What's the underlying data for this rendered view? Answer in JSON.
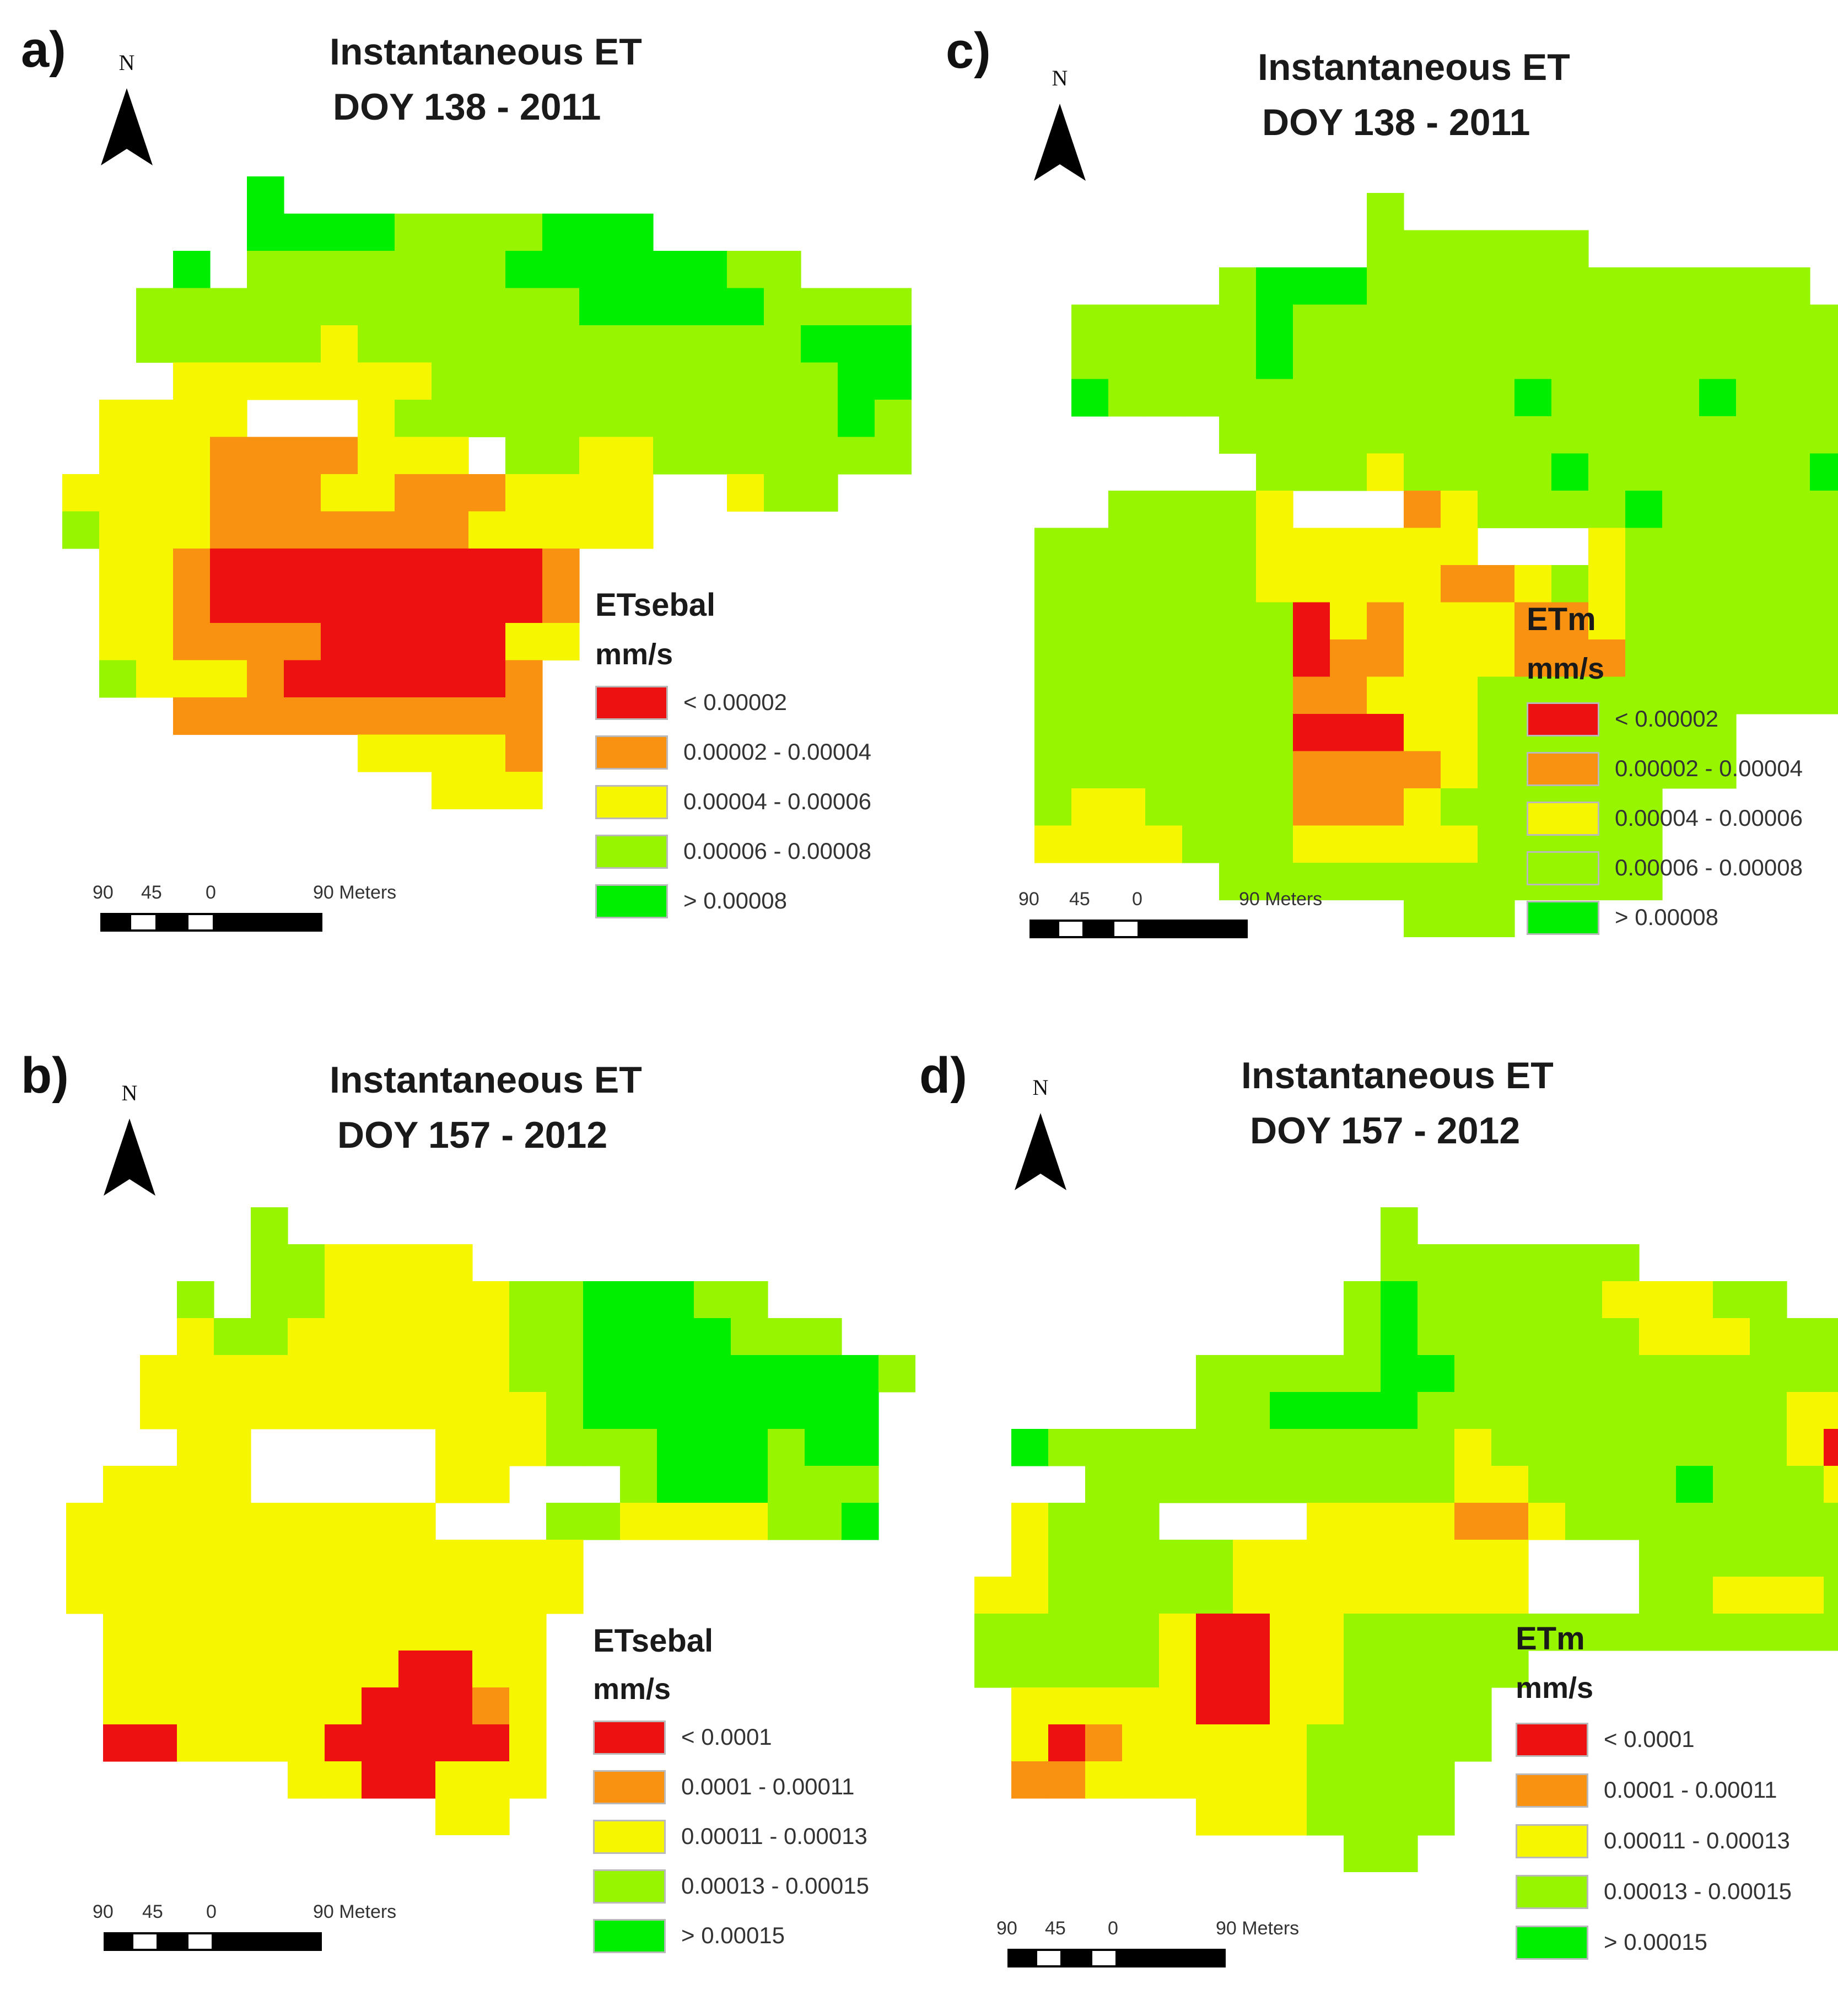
{
  "colors": {
    "red": "#ee1111",
    "orange": "#f99210",
    "yellow": "#f6f600",
    "lightgreen": "#98f500",
    "green": "#00ee00"
  },
  "panels": [
    {
      "letter": "a)",
      "title_line1": "Instantaneous ET",
      "title_line2": "DOY 138 - 2011",
      "north_label": "N",
      "legend": {
        "title": "ETsebal",
        "unit": "mm/s",
        "classes": [
          {
            "label": "< 0.00002",
            "color": "red"
          },
          {
            "label": "0.00002 - 0.00004",
            "color": "orange"
          },
          {
            "label": "0.00004 - 0.00006",
            "color": "yellow"
          },
          {
            "label": "0.00006 - 0.00008",
            "color": "lightgreen"
          },
          {
            "label": "> 0.00008",
            "color": "green"
          }
        ]
      },
      "scale": {
        "t1": "90",
        "t2": "45",
        "t3": "0",
        "t4": "90 Meters"
      },
      "grid": [
        ".....G.................",
        ".....GGGGLLLLGGG.......",
        "...G.LLLLLLLGGGGGGLL...",
        "..LLLLLLLLLLLLGGGGGLLLL",
        "..LLLLLYLLLLLLLLLLLLGGG",
        "...YYYYYYYLLLLLLLLLLLGG",
        ".YYYY...YLLLLLLLLLLLLGL",
        ".YYYOOOOYYY.LLYYLLLLLLL",
        "YYYYOOOYYOOOYYYY..YLL..",
        "LYYYOOOOOOOYYYYY.......",
        ".YYORRRRRRRRRO.........",
        ".YYORRRRRRRRRO.........",
        ".YYOOOORRRRRYY.........",
        ".LYYYORRRRRRO..........",
        "...OOOOOOOOOO..........",
        "........YYYYO..........",
        "..........YYY.........."
      ]
    },
    {
      "letter": "b)",
      "title_line1": "Instantaneous ET",
      "title_line2": "DOY 157 - 2012",
      "north_label": "N",
      "legend": {
        "title": "ETsebal",
        "unit": "mm/s",
        "classes": [
          {
            "label": "< 0.0001",
            "color": "red"
          },
          {
            "label": "0.0001 - 0.00011",
            "color": "orange"
          },
          {
            "label": "0.00011 - 0.00013",
            "color": "yellow"
          },
          {
            "label": "0.00013 - 0.00015",
            "color": "lightgreen"
          },
          {
            "label": "> 0.00015",
            "color": "green"
          }
        ]
      },
      "scale": {
        "t1": "90",
        "t2": "45",
        "t3": "0",
        "t4": "90 Meters"
      },
      "grid": [
        ".....L.................",
        ".....LLYYYY............",
        "...L.LLYYYYYLLGGGLL....",
        "...YLLYYYYYYLLGGGGLLL..",
        "..YYYYYYYYYYLLGGGGGGGGL",
        "..YYYYYYYYYYYLGGGGGGGG.",
        "...YY.....YYYLLLGGGLGG.",
        ".YYYY.....YY...LGGGLLL.",
        "YYYYYYYYYY...LLYYYYLLG.",
        "YYYYYYYYYYYYYY.........",
        "YYYYYYYYYYYYYY.........",
        ".YYYYYYYYYYYY..........",
        ".YYYYYYYYRRYY..........",
        ".YYYYYYYRRROY..........",
        ".RRYYYYRRRRRY..........",
        "......YYRRYYY..........",
        "..........YY..........."
      ]
    },
    {
      "letter": "c)",
      "title_line1": "Instantaneous ET",
      "title_line2": "DOY 138 - 2011",
      "north_label": "N",
      "legend": {
        "title": "ETm",
        "unit": "mm/s",
        "classes": [
          {
            "label": "< 0.00002",
            "color": "red"
          },
          {
            "label": "0.00002 - 0.00004",
            "color": "orange"
          },
          {
            "label": "0.00004 - 0.00006",
            "color": "yellow"
          },
          {
            "label": "0.00006 - 0.00008",
            "color": "lightgreen"
          },
          {
            "label": "> 0.00008",
            "color": "green"
          }
        ]
      },
      "scale": {
        "t1": "90",
        "t2": "45",
        "t3": "0",
        "t4": "90 Meters"
      },
      "grid": [
        "..........L..............",
        "..........LLLLLL.........",
        "......LGGGLLLLLLLLLLLL...",
        "..LLLLLGLLLLLLLLLLLLLLLL.",
        "..LLLLLGLLLLLLLLLLLLLLLL.",
        "..GLLLLLLLLLLLGLLLLGLLLLY",
        "......LLLLLLLLLLLLLLLLLLY",
        ".......LLLYLLLLGLLLLLLGLL",
        "...LLLLY...OYLLLLGLLLLLLL",
        ".LLLLLLYYYYYY...YLLLLLLLL",
        ".LLLLLLYYYYYOOYLYLLLLLLLL",
        ".LLLLLLLRYOYYYOOYLLLLLLLL",
        ".LLLLLLLROOYYYOOOLLLLLLLO",
        ".LLLLLLLOOYYYLLLLLLLLLL..",
        ".LLLLLLLRRRYYLLLLLLL.....",
        ".LLLLLLLOOOOYLLLLLLL.....",
        ".LYYLLLLOOOYLLLLLL.......",
        ".YYYYLLLYYYYYLLLLL.......",
        "......LLLLLLLLLLLL.......",
        "...........LLL..........."
      ]
    },
    {
      "letter": "d)",
      "title_line1": "Instantaneous ET",
      "title_line2": "DOY 157 - 2012",
      "north_label": "N",
      "legend": {
        "title": "ETm",
        "unit": "mm/s",
        "classes": [
          {
            "label": "< 0.0001",
            "color": "red"
          },
          {
            "label": "0.0001 - 0.00011",
            "color": "orange"
          },
          {
            "label": "0.00011 - 0.00013",
            "color": "yellow"
          },
          {
            "label": "0.00013 - 0.00015",
            "color": "lightgreen"
          },
          {
            "label": "> 0.00015",
            "color": "green"
          }
        ]
      },
      "scale": {
        "t1": "90",
        "t2": "45",
        "t3": "0",
        "t4": "90 Meters"
      },
      "grid": [
        "...........L.............",
        "...........LLLLLLL.......",
        "..........LGLLLLLYYYLL...",
        "..........LGLLLLLLYYYLLL.",
        "......LLLLLGGLLLLLLLLLLLL",
        "......LLGGGGLLLLLLLLLLYYY",
        ".GLLLLLLLLLLLYLLLLLLLLYRO",
        "...LLLLLLLLLLYYLLLLGLLLYO",
        ".YLLL....YYYYOOYLLLLLLLLY",
        ".YLLLLLYYYYYYYY...LLLLLLY",
        "YYLLLLLYYYYYYYY...LLYYYLL",
        "LLLLLYRRYYLLLLLLLLLLLLLLO",
        "LLLLLYRRYYLLLLL..........",
        ".YYYYYRRYYLLLL...........",
        ".YROYYYYYLLLLL...........",
        ".OOYYYYYYLLLL............",
        "......YYYLLLL............",
        "..........LL............."
      ]
    }
  ]
}
